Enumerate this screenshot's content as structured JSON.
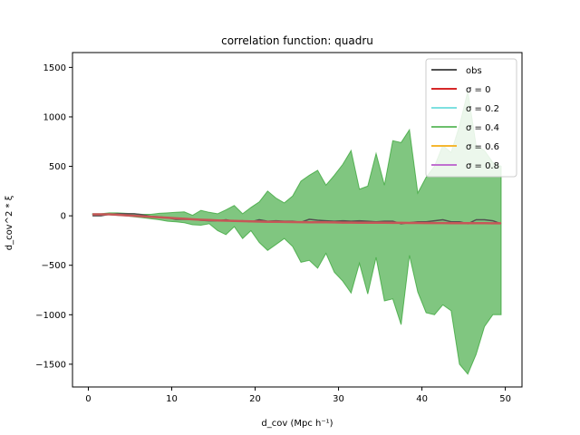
{
  "chart_data": {
    "type": "line",
    "title": "correlation function: quadru",
    "xlabel": "d_cov (Mpc h⁻¹)",
    "ylabel": "d_cov^2 * ξ",
    "xlim": [
      -1.9,
      52.0
    ],
    "ylim": [
      -1730,
      1650
    ],
    "xticks": [
      0,
      10,
      20,
      30,
      40,
      50
    ],
    "yticks": [
      -1500,
      -1000,
      -500,
      0,
      500,
      1000,
      1500
    ],
    "legend_position": "top-right",
    "x": [
      0.5,
      1.5,
      2.5,
      3.5,
      4.5,
      5.5,
      6.5,
      7.5,
      8.5,
      9.5,
      10.5,
      11.5,
      12.5,
      13.5,
      14.5,
      15.5,
      16.5,
      17.5,
      18.5,
      19.5,
      20.5,
      21.5,
      22.5,
      23.5,
      24.5,
      25.5,
      26.5,
      27.5,
      28.5,
      29.5,
      30.5,
      31.5,
      32.5,
      33.5,
      34.5,
      35.5,
      36.5,
      37.5,
      38.5,
      39.5,
      40.5,
      41.5,
      42.5,
      43.5,
      44.5,
      45.5,
      46.5,
      47.5,
      48.5,
      49.5
    ],
    "band": {
      "name": "σ=0.4",
      "color": "#2ca02c",
      "upper": [
        20,
        20,
        30,
        30,
        25,
        20,
        15,
        15,
        25,
        30,
        35,
        40,
        5,
        55,
        35,
        20,
        60,
        105,
        20,
        85,
        140,
        250,
        180,
        130,
        200,
        350,
        410,
        460,
        310,
        410,
        520,
        660,
        270,
        300,
        630,
        310,
        760,
        740,
        870,
        230,
        390,
        500,
        710,
        640,
        910,
        1260,
        710,
        660,
        540,
        500
      ],
      "lower": [
        10,
        10,
        10,
        5,
        0,
        -10,
        -20,
        -30,
        -40,
        -55,
        -60,
        -70,
        -90,
        -95,
        -80,
        -150,
        -190,
        -110,
        -230,
        -150,
        -270,
        -350,
        -290,
        -230,
        -310,
        -470,
        -450,
        -530,
        -380,
        -570,
        -660,
        -780,
        -480,
        -790,
        -420,
        -860,
        -840,
        -1100,
        -400,
        -770,
        -980,
        -1000,
        -900,
        -960,
        -1500,
        -1600,
        -1400,
        -1120,
        -1000,
        -1000
      ]
    },
    "series": [
      {
        "name": "obs",
        "color": "#505050",
        "width": 1.5,
        "values": [
          0,
          0,
          15,
          20,
          20,
          20,
          10,
          -5,
          -10,
          -20,
          -35,
          -35,
          -35,
          -45,
          -50,
          -50,
          -40,
          -55,
          -50,
          -60,
          -40,
          -55,
          -50,
          -55,
          -55,
          -65,
          -35,
          -45,
          -50,
          -55,
          -50,
          -55,
          -50,
          -55,
          -60,
          -55,
          -55,
          -80,
          -70,
          -60,
          -60,
          -50,
          -40,
          -60,
          -60,
          -80,
          -40,
          -40,
          -50,
          -80
        ]
      },
      {
        "name": "σ=0",
        "color": "#d62728",
        "width": 1.5,
        "values": [
          15,
          15,
          15,
          10,
          5,
          0,
          -5,
          -10,
          -15,
          -20,
          -25,
          -30,
          -35,
          -40,
          -43,
          -46,
          -49,
          -52,
          -54,
          -56,
          -58,
          -60,
          -61,
          -62,
          -63,
          -64,
          -65,
          -66,
          -66,
          -67,
          -68,
          -68,
          -69,
          -69,
          -70,
          -70,
          -71,
          -71,
          -72,
          -72,
          -73,
          -73,
          -73,
          -74,
          -74,
          -75,
          -75,
          -75,
          -76,
          -76
        ]
      },
      {
        "name": "σ=0.2",
        "color": "#7ee0e0",
        "width": 1.5,
        "values": [
          15,
          15,
          15,
          10,
          5,
          0,
          -5,
          -10,
          -15,
          -20,
          -25,
          -30,
          -35,
          -40,
          -43,
          -46,
          -49,
          -52,
          -54,
          -56,
          -58,
          -60,
          -61,
          -62,
          -63,
          -64,
          -65,
          -66,
          -66,
          -67,
          -68,
          -68,
          -69,
          -69,
          -70,
          -70,
          -71,
          -71,
          -72,
          -72,
          -73,
          -73,
          -73,
          -74,
          -74,
          -75,
          -75,
          -75,
          -76,
          -76
        ]
      },
      {
        "name": "σ=0.4",
        "color": "#2ca02c",
        "width": 1.5,
        "opacity": 0.6,
        "values": [
          15,
          15,
          15,
          10,
          5,
          0,
          -5,
          -10,
          -15,
          -20,
          -25,
          -30,
          -35,
          -40,
          -43,
          -46,
          -49,
          -52,
          -54,
          -56,
          -58,
          -60,
          -61,
          -62,
          -63,
          -64,
          -65,
          -66,
          -66,
          -67,
          -68,
          -68,
          -69,
          -69,
          -70,
          -70,
          -71,
          -71,
          -72,
          -72,
          -73,
          -73,
          -73,
          -74,
          -74,
          -75,
          -75,
          -75,
          -76,
          -76
        ]
      },
      {
        "name": "σ=0.6",
        "color": "#f5b731",
        "width": 1.5,
        "values": [
          15,
          15,
          15,
          10,
          5,
          0,
          -5,
          -10,
          -15,
          -20,
          -25,
          -30,
          -35,
          -40,
          -43,
          -46,
          -49,
          -52,
          -54,
          -56,
          -58,
          -60,
          -61,
          -62,
          -63,
          -64,
          -65,
          -66,
          -66,
          -67,
          -68,
          -68,
          -69,
          -69,
          -70,
          -70,
          -71,
          -71,
          -72,
          -72,
          -73,
          -73,
          -73,
          -74,
          -74,
          -75,
          -75,
          -75,
          -76,
          -76
        ]
      },
      {
        "name": "σ=0.8",
        "color": "#c070d0",
        "width": 1.5,
        "values": [
          15,
          15,
          15,
          10,
          5,
          0,
          -5,
          -10,
          -15,
          -20,
          -25,
          -30,
          -35,
          -40,
          -43,
          -46,
          -49,
          -52,
          -54,
          -56,
          -58,
          -60,
          -61,
          -62,
          -63,
          -64,
          -65,
          -66,
          -66,
          -67,
          -68,
          -68,
          -69,
          -69,
          -70,
          -70,
          -71,
          -71,
          -72,
          -72,
          -73,
          -73,
          -73,
          -74,
          -74,
          -75,
          -75,
          -75,
          -76,
          -76
        ]
      },
      {
        "name": "",
        "color": "#c65757",
        "width": 2.5,
        "values": [
          15,
          15,
          15,
          10,
          5,
          0,
          -5,
          -10,
          -15,
          -20,
          -25,
          -30,
          -35,
          -40,
          -43,
          -46,
          -49,
          -52,
          -54,
          -56,
          -58,
          -60,
          -61,
          -62,
          -63,
          -64,
          -65,
          -66,
          -66,
          -67,
          -68,
          -68,
          -69,
          -69,
          -70,
          -70,
          -71,
          -71,
          -72,
          -72,
          -73,
          -73,
          -73,
          -74,
          -74,
          -75,
          -75,
          -75,
          -76,
          -76
        ]
      }
    ],
    "legend": [
      {
        "label": "obs",
        "color": "#505050"
      },
      {
        "label": "σ = 0",
        "color": "#d62728"
      },
      {
        "label": "σ = 0.2",
        "color": "#7ee0e0"
      },
      {
        "label": "σ = 0.4",
        "color": "#6cbf6c"
      },
      {
        "label": "σ = 0.6",
        "color": "#f5b731"
      },
      {
        "label": "σ = 0.8",
        "color": "#c070d0"
      }
    ]
  }
}
